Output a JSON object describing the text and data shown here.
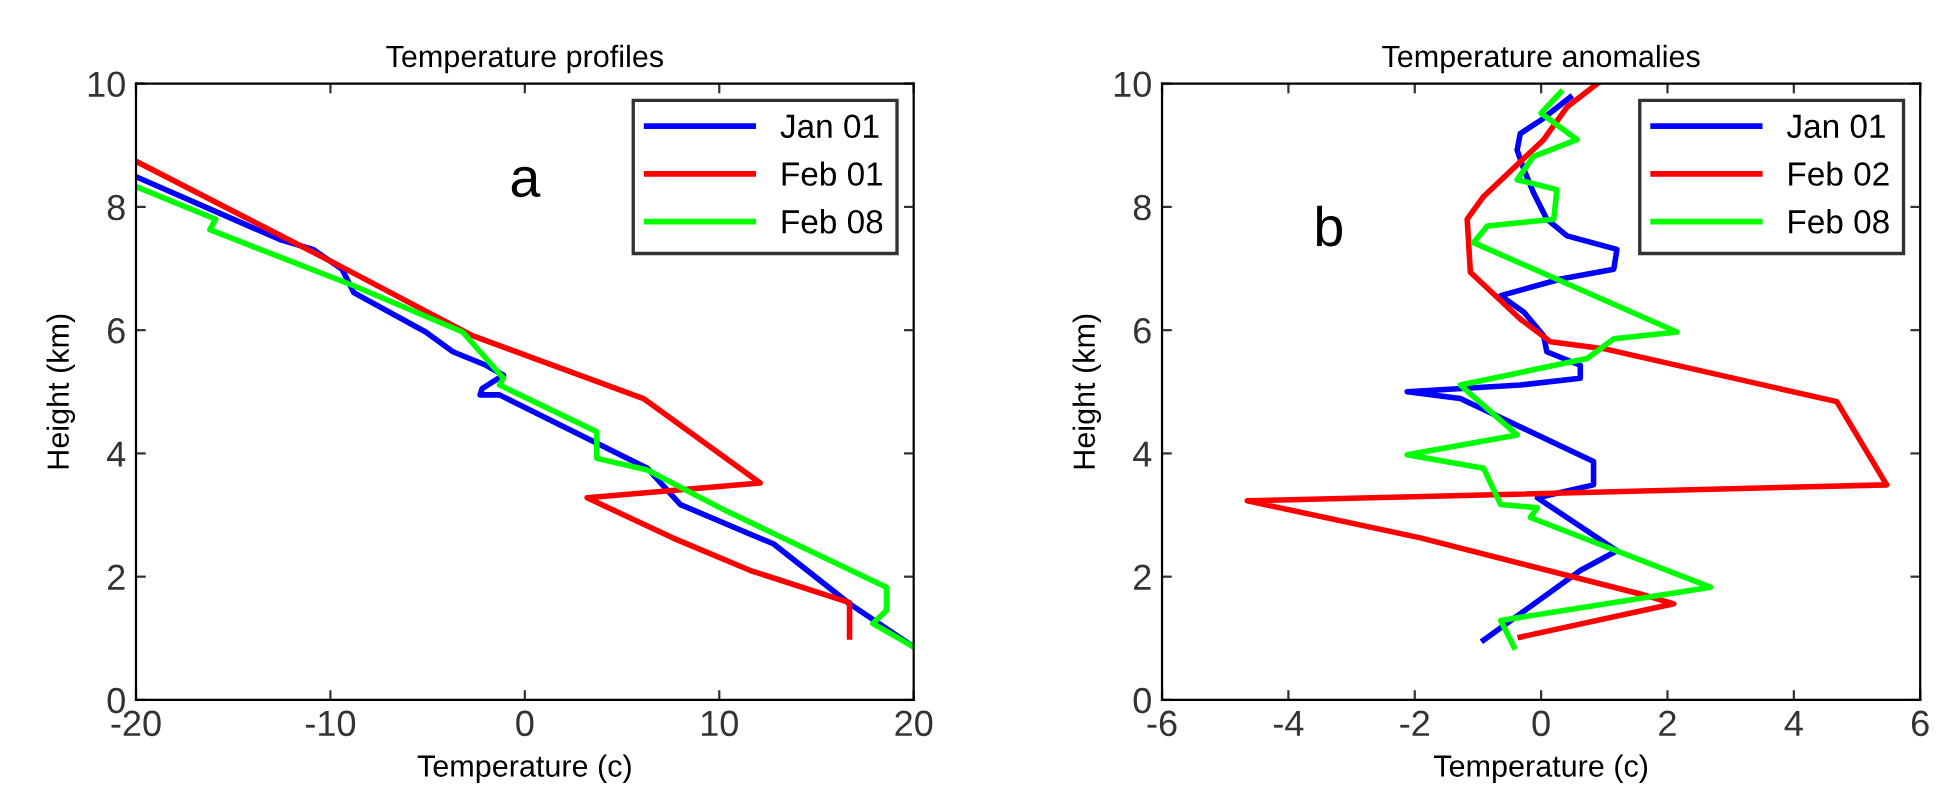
{
  "chart_data": [
    {
      "type": "line",
      "title": "Temperature profiles",
      "xlabel": "Temperature (c)",
      "ylabel": "Height (km)",
      "annotations": [
        "a"
      ],
      "xlim": [
        -20,
        20
      ],
      "xticks": [
        -20,
        -10,
        0,
        10,
        20
      ],
      "ylim": [
        0,
        10
      ],
      "yticks": [
        0,
        2,
        4,
        6,
        8,
        10
      ],
      "legend": "top right",
      "grid": false,
      "series": [
        {
          "name": "Jan 01",
          "color": "#0000ff",
          "x": [
            -20,
            -12.6,
            -10.9,
            -9.4,
            -8.8,
            -5.1,
            -3.7,
            -2.0,
            -1.1,
            -2.2,
            -2.3,
            -1.3,
            6.3,
            8.0,
            12.8,
            16.7,
            20
          ],
          "values": [
            8.49,
            7.47,
            7.31,
            6.99,
            6.61,
            5.97,
            5.65,
            5.43,
            5.27,
            5.05,
            4.95,
            4.95,
            3.76,
            3.17,
            2.53,
            1.56,
            0.86
          ]
        },
        {
          "name": "Feb 01",
          "color": "#ff0000",
          "x": [
            -20,
            -9.2,
            -2.7,
            6.1,
            12.1,
            3.2,
            7.6,
            11.6,
            16.7,
            16.7
          ],
          "values": [
            8.74,
            6.99,
            5.91,
            4.89,
            3.52,
            3.28,
            2.63,
            2.1,
            1.58,
            1.02
          ]
        },
        {
          "name": "Feb 08",
          "color": "#00ff00",
          "x": [
            -20,
            -15.9,
            -16.2,
            -8.8,
            -3.2,
            -2.3,
            -1.1,
            -1.3,
            3.7,
            3.7,
            6.3,
            10.4,
            18.6,
            18.6,
            17.9,
            20
          ],
          "values": [
            8.33,
            7.8,
            7.63,
            6.72,
            5.97,
            5.65,
            5.22,
            5.11,
            4.35,
            3.92,
            3.73,
            3.06,
            1.83,
            1.45,
            1.24,
            0.86
          ]
        }
      ]
    },
    {
      "type": "line",
      "title": "Temperature anomalies",
      "xlabel": "Temperature (c)",
      "ylabel": "Height (km)",
      "annotations": [
        "b"
      ],
      "xlim": [
        -6,
        6
      ],
      "xticks": [
        -6,
        -4,
        -2,
        0,
        2,
        4,
        6
      ],
      "ylim": [
        0,
        10
      ],
      "yticks": [
        0,
        2,
        4,
        6,
        8,
        10
      ],
      "legend": "top right",
      "grid": false,
      "series": [
        {
          "name": "Jan 01",
          "color": "#0000ff",
          "x": [
            0.46,
            0,
            -0.33,
            -0.38,
            -0.27,
            -0.12,
            0.09,
            0.41,
            1.2,
            1.15,
            0.31,
            -0.64,
            -0.27,
            0.04,
            0.09,
            0.62,
            0.62,
            -0.33,
            -2.12,
            -1.28,
            0.83,
            0.83,
            -0.06,
            1.2,
            0.62,
            -0.91
          ],
          "values": [
            9.78,
            9.41,
            9.19,
            8.92,
            8.6,
            8.23,
            7.8,
            7.53,
            7.31,
            6.99,
            6.83,
            6.56,
            6.29,
            5.91,
            5.65,
            5.43,
            5.22,
            5.11,
            5.0,
            4.89,
            3.87,
            3.49,
            3.28,
            2.42,
            2.1,
            0.97
          ]
        },
        {
          "name": "Feb 02",
          "color": "#ff0000",
          "x": [
            0.89,
            0.41,
            0.04,
            -0.91,
            -1.17,
            -1.12,
            -0.33,
            0.15,
            0.99,
            4.68,
            5.47,
            -0.75,
            -4.65,
            -1.91,
            1.57,
            2.1,
            -0.33
          ],
          "values": [
            10,
            9.62,
            9.09,
            8.17,
            7.8,
            6.94,
            6.18,
            5.81,
            5.7,
            4.84,
            3.49,
            3.33,
            3.23,
            2.63,
            1.72,
            1.56,
            1.02
          ]
        },
        {
          "name": "Feb 08",
          "color": "#00ff00",
          "x": [
            0.31,
            0,
            0.57,
            -0.12,
            -0.38,
            0.25,
            0.2,
            -0.85,
            -1.07,
            2.15,
            1.15,
            0.73,
            -1.28,
            -0.38,
            -2.12,
            -0.91,
            -0.64,
            -0.06,
            -0.17,
            2.68,
            -0.64,
            -0.43
          ],
          "values": [
            9.86,
            9.52,
            9.09,
            8.82,
            8.44,
            8.28,
            7.8,
            7.69,
            7.42,
            5.97,
            5.86,
            5.54,
            5.11,
            4.3,
            3.98,
            3.76,
            3.17,
            3.12,
            2.96,
            1.83,
            1.29,
            0.86
          ]
        }
      ]
    }
  ]
}
